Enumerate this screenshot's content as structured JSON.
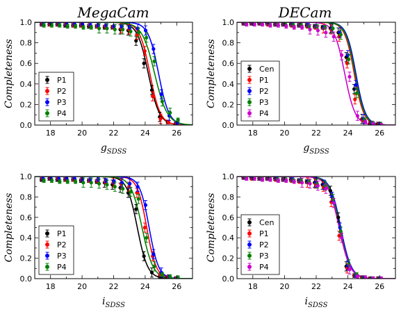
{
  "figure": {
    "column_titles": [
      "MegaCam",
      "DECam"
    ]
  },
  "chart_data": [
    {
      "type": "scatter",
      "title": "MegaCam",
      "xlabel": "g_SDSS",
      "ylabel": "Completeness",
      "xlim": [
        17,
        27
      ],
      "ylim": [
        0,
        1.0
      ],
      "xticks": [
        18,
        20,
        22,
        24,
        26
      ],
      "yticks": [
        0.0,
        0.2,
        0.4,
        0.6,
        0.8,
        1.0
      ],
      "legend_position": "lower-left",
      "series": [
        {
          "name": "P1",
          "color": "#000000",
          "fit": {
            "m50": 24.2,
            "alpha": 0.35
          },
          "x": [
            17.5,
            18,
            18.5,
            19,
            19.5,
            20,
            20.5,
            21,
            21.5,
            22,
            22.5,
            23,
            23.5,
            24,
            24.5,
            25,
            25.5,
            26
          ],
          "y": [
            0.98,
            0.98,
            0.98,
            0.97,
            0.97,
            0.97,
            0.96,
            0.96,
            0.95,
            0.95,
            0.93,
            0.92,
            0.82,
            0.6,
            0.34,
            0.08,
            0.03,
            0.01
          ]
        },
        {
          "name": "P2",
          "color": "#ff0000",
          "fit": {
            "m50": 24.3,
            "alpha": 0.33
          },
          "x": [
            17.5,
            18,
            18.5,
            19,
            19.5,
            20,
            20.5,
            21,
            21.5,
            22,
            22.5,
            23,
            23.5,
            24,
            24.5,
            25,
            25.5,
            26
          ],
          "y": [
            0.98,
            0.98,
            0.98,
            0.98,
            0.97,
            0.97,
            0.97,
            0.96,
            0.96,
            0.95,
            0.94,
            0.93,
            0.88,
            0.72,
            0.28,
            0.06,
            0.03,
            0.01
          ]
        },
        {
          "name": "P3",
          "color": "#0000ff",
          "fit": {
            "m50": 24.85,
            "alpha": 0.33
          },
          "x": [
            17.5,
            18,
            18.5,
            19,
            19.5,
            20,
            20.5,
            21,
            21.5,
            22,
            22.5,
            23,
            23.5,
            24,
            24.5,
            25,
            25.5,
            26
          ],
          "y": [
            0.98,
            0.99,
            0.98,
            0.98,
            0.98,
            0.98,
            0.97,
            0.97,
            0.97,
            0.96,
            0.96,
            0.95,
            0.94,
            0.92,
            0.74,
            0.3,
            0.09,
            0.02
          ]
        },
        {
          "name": "P4",
          "color": "#008000",
          "fit": {
            "m50": 24.6,
            "alpha": 0.4
          },
          "x": [
            17.5,
            18,
            18.5,
            19,
            19.5,
            20,
            20.5,
            21,
            21.5,
            22,
            22.5,
            23,
            23.5,
            24,
            24.5,
            25,
            25.5,
            26
          ],
          "y": [
            0.97,
            0.97,
            0.97,
            0.96,
            0.96,
            0.95,
            0.95,
            0.94,
            0.94,
            0.93,
            0.93,
            0.91,
            0.9,
            0.85,
            0.62,
            0.23,
            0.12,
            0.05
          ]
        }
      ]
    },
    {
      "type": "scatter",
      "title": "DECam",
      "xlabel": "g_SDSS",
      "ylabel": "Completeness",
      "xlim": [
        17,
        27
      ],
      "ylim": [
        0,
        1.0
      ],
      "xticks": [
        18,
        20,
        22,
        24,
        26
      ],
      "yticks": [
        0.0,
        0.2,
        0.4,
        0.6,
        0.8,
        1.0
      ],
      "legend_position": "lower-left",
      "series": [
        {
          "name": "Cen",
          "color": "#000000",
          "fit": {
            "m50": 24.5,
            "alpha": 0.3
          },
          "x": [
            17.5,
            18,
            18.5,
            19,
            19.5,
            20,
            20.5,
            21,
            21.5,
            22,
            22.5,
            23,
            23.5,
            24,
            24.5,
            25,
            25.5,
            26
          ],
          "y": [
            0.99,
            0.99,
            0.99,
            0.99,
            0.98,
            0.98,
            0.98,
            0.97,
            0.97,
            0.96,
            0.95,
            0.94,
            0.9,
            0.66,
            0.35,
            0.06,
            0.02,
            0.01
          ]
        },
        {
          "name": "P1",
          "color": "#ff0000",
          "fit": {
            "m50": 24.4,
            "alpha": 0.3
          },
          "x": [
            17.5,
            18,
            18.5,
            19,
            19.5,
            20,
            20.5,
            21,
            21.5,
            22,
            22.5,
            23,
            23.5,
            24,
            24.5,
            25,
            25.5,
            26
          ],
          "y": [
            0.99,
            0.99,
            0.99,
            0.98,
            0.98,
            0.98,
            0.97,
            0.97,
            0.96,
            0.95,
            0.94,
            0.93,
            0.86,
            0.6,
            0.25,
            0.05,
            0.02,
            0.01
          ]
        },
        {
          "name": "P2",
          "color": "#0000ff",
          "fit": {
            "m50": 24.5,
            "alpha": 0.3
          },
          "x": [
            17.5,
            18,
            18.5,
            19,
            19.5,
            20,
            20.5,
            21,
            21.5,
            22,
            22.5,
            23,
            23.5,
            24,
            24.5,
            25,
            25.5,
            26
          ],
          "y": [
            0.99,
            0.99,
            0.99,
            0.99,
            0.98,
            0.98,
            0.98,
            0.97,
            0.97,
            0.96,
            0.95,
            0.94,
            0.9,
            0.68,
            0.39,
            0.06,
            0.02,
            0.01
          ]
        },
        {
          "name": "P3",
          "color": "#008000",
          "fit": {
            "m50": 24.45,
            "alpha": 0.3
          },
          "x": [
            17.5,
            18,
            18.5,
            19,
            19.5,
            20,
            20.5,
            21,
            21.5,
            22,
            22.5,
            23,
            23.5,
            24,
            24.5,
            25,
            25.5,
            26
          ],
          "y": [
            0.99,
            0.99,
            0.99,
            0.98,
            0.98,
            0.98,
            0.97,
            0.97,
            0.96,
            0.96,
            0.95,
            0.94,
            0.88,
            0.64,
            0.31,
            0.05,
            0.02,
            0.01
          ]
        },
        {
          "name": "P4",
          "color": "#cc00cc",
          "fit": {
            "m50": 23.8,
            "alpha": 0.33
          },
          "x": [
            17.5,
            18,
            18.5,
            19,
            19.5,
            20,
            20.5,
            21,
            21.5,
            22,
            22.5,
            23,
            23.5,
            24,
            24.5,
            25,
            25.5,
            26
          ],
          "y": [
            0.98,
            0.98,
            0.98,
            0.97,
            0.97,
            0.96,
            0.95,
            0.95,
            0.93,
            0.92,
            0.9,
            0.86,
            0.68,
            0.47,
            0.09,
            0.03,
            0.01,
            0.0
          ]
        }
      ]
    },
    {
      "type": "scatter",
      "title": "",
      "xlabel": "i_SDSS",
      "ylabel": "Completeness",
      "xlim": [
        17,
        27
      ],
      "ylim": [
        0,
        1.0
      ],
      "xticks": [
        18,
        20,
        22,
        24,
        26
      ],
      "yticks": [
        0.0,
        0.2,
        0.4,
        0.6,
        0.8,
        1.0
      ],
      "legend_position": "lower-left",
      "series": [
        {
          "name": "P1",
          "color": "#000000",
          "fit": {
            "m50": 23.5,
            "alpha": 0.33
          },
          "x": [
            17.5,
            18,
            18.5,
            19,
            19.5,
            20,
            20.5,
            21,
            21.5,
            22,
            22.5,
            23,
            23.5,
            24,
            24.5,
            25,
            25.5,
            26
          ],
          "y": [
            0.97,
            0.98,
            0.97,
            0.97,
            0.97,
            0.96,
            0.96,
            0.95,
            0.94,
            0.92,
            0.89,
            0.84,
            0.68,
            0.22,
            0.06,
            0.02,
            0.01,
            0.0
          ]
        },
        {
          "name": "P2",
          "color": "#ff0000",
          "fit": {
            "m50": 24.1,
            "alpha": 0.3
          },
          "x": [
            17.5,
            18,
            18.5,
            19,
            19.5,
            20,
            20.5,
            21,
            21.5,
            22,
            22.5,
            23,
            23.5,
            24,
            24.5,
            25,
            25.5,
            26
          ],
          "y": [
            0.98,
            0.98,
            0.98,
            0.97,
            0.97,
            0.97,
            0.96,
            0.96,
            0.95,
            0.94,
            0.93,
            0.9,
            0.84,
            0.5,
            0.22,
            0.04,
            0.02,
            0.0
          ]
        },
        {
          "name": "P3",
          "color": "#0000ff",
          "fit": {
            "m50": 24.25,
            "alpha": 0.3
          },
          "x": [
            17.5,
            18,
            18.5,
            19,
            19.5,
            20,
            20.5,
            21,
            21.5,
            22,
            22.5,
            23,
            23.5,
            24,
            24.5,
            25,
            25.5,
            26
          ],
          "y": [
            0.98,
            0.98,
            0.98,
            0.98,
            0.98,
            0.97,
            0.97,
            0.97,
            0.96,
            0.95,
            0.94,
            0.93,
            0.9,
            0.72,
            0.24,
            0.06,
            0.02,
            0.0
          ]
        },
        {
          "name": "P4",
          "color": "#008000",
          "fit": {
            "m50": 23.8,
            "alpha": 0.35
          },
          "x": [
            17.5,
            18,
            18.5,
            19,
            19.5,
            20,
            20.5,
            21,
            21.5,
            22,
            22.5,
            23,
            23.5,
            24,
            24.5,
            25,
            25.5,
            26
          ],
          "y": [
            0.96,
            0.96,
            0.95,
            0.95,
            0.95,
            0.94,
            0.94,
            0.93,
            0.92,
            0.9,
            0.88,
            0.85,
            0.78,
            0.4,
            0.12,
            0.04,
            0.02,
            0.01
          ]
        }
      ]
    },
    {
      "type": "scatter",
      "title": "",
      "xlabel": "i_SDSS",
      "ylabel": "Completeness",
      "xlim": [
        17,
        27
      ],
      "ylim": [
        0,
        1.0
      ],
      "xticks": [
        18,
        20,
        22,
        24,
        26
      ],
      "yticks": [
        0.0,
        0.2,
        0.4,
        0.6,
        0.8,
        1.0
      ],
      "legend_position": "lower-left",
      "series": [
        {
          "name": "Cen",
          "color": "#000000",
          "fit": {
            "m50": 23.5,
            "alpha": 0.33
          },
          "x": [
            17.5,
            18,
            18.5,
            19,
            19.5,
            20,
            20.5,
            21,
            21.5,
            22,
            22.5,
            23,
            23.5,
            24,
            24.5,
            25,
            25.5,
            26
          ],
          "y": [
            0.99,
            0.99,
            0.98,
            0.98,
            0.98,
            0.97,
            0.97,
            0.96,
            0.95,
            0.94,
            0.92,
            0.86,
            0.6,
            0.12,
            0.03,
            0.01,
            0.0,
            0.0
          ]
        },
        {
          "name": "P1",
          "color": "#ff0000",
          "fit": {
            "m50": 23.45,
            "alpha": 0.35
          },
          "x": [
            17.5,
            18,
            18.5,
            19,
            19.5,
            20,
            20.5,
            21,
            21.5,
            22,
            22.5,
            23,
            23.5,
            24,
            24.5,
            25,
            25.5,
            26
          ],
          "y": [
            0.99,
            0.98,
            0.98,
            0.98,
            0.97,
            0.97,
            0.96,
            0.95,
            0.94,
            0.93,
            0.9,
            0.75,
            0.42,
            0.1,
            0.03,
            0.01,
            0.0,
            0.0
          ]
        },
        {
          "name": "P2",
          "color": "#0000ff",
          "fit": {
            "m50": 23.55,
            "alpha": 0.33
          },
          "x": [
            17.5,
            18,
            18.5,
            19,
            19.5,
            20,
            20.5,
            21,
            21.5,
            22,
            22.5,
            23,
            23.5,
            24,
            24.5,
            25,
            25.5,
            26
          ],
          "y": [
            0.99,
            0.99,
            0.98,
            0.98,
            0.98,
            0.97,
            0.97,
            0.96,
            0.95,
            0.94,
            0.92,
            0.8,
            0.5,
            0.13,
            0.03,
            0.01,
            0.0,
            0.0
          ]
        },
        {
          "name": "P3",
          "color": "#008000",
          "fit": {
            "m50": 23.5,
            "alpha": 0.33
          },
          "x": [
            17.5,
            18,
            18.5,
            19,
            19.5,
            20,
            20.5,
            21,
            21.5,
            22,
            22.5,
            23,
            23.5,
            24,
            24.5,
            25,
            25.5,
            26
          ],
          "y": [
            0.99,
            0.98,
            0.98,
            0.98,
            0.97,
            0.97,
            0.96,
            0.96,
            0.95,
            0.93,
            0.91,
            0.78,
            0.46,
            0.14,
            0.04,
            0.01,
            0.0,
            0.0
          ]
        },
        {
          "name": "P4",
          "color": "#cc00cc",
          "fit": {
            "m50": 23.45,
            "alpha": 0.35
          },
          "x": [
            17.5,
            18,
            18.5,
            19,
            19.5,
            20,
            20.5,
            21,
            21.5,
            22,
            22.5,
            23,
            23.5,
            24,
            24.5,
            25,
            25.5,
            26
          ],
          "y": [
            0.98,
            0.98,
            0.97,
            0.97,
            0.96,
            0.96,
            0.95,
            0.94,
            0.93,
            0.91,
            0.88,
            0.74,
            0.4,
            0.09,
            0.02,
            0.01,
            0.0,
            0.0
          ]
        }
      ]
    }
  ]
}
